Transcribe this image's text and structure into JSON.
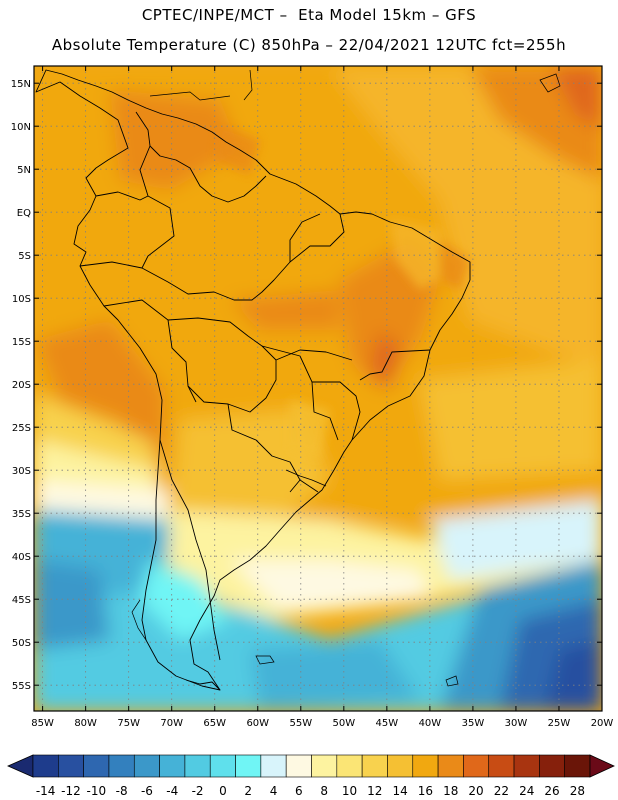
{
  "header": {
    "line1": "CPTEC/INPE/MCT –  Eta Model 15km – GFS",
    "line2": "Absolute Temperature (C) 850hPa – 22/04/2021 12UTC fct=255h"
  },
  "map": {
    "lon_range": [
      -86,
      -20
    ],
    "lat_range": [
      -58,
      17
    ],
    "lat_ticks": [
      "15N",
      "10N",
      "5N",
      "EQ",
      "5S",
      "10S",
      "15S",
      "20S",
      "25S",
      "30S",
      "35S",
      "40S",
      "45S",
      "50S",
      "55S"
    ],
    "lon_ticks": [
      "85W",
      "80W",
      "75W",
      "70W",
      "65W",
      "60W",
      "55W",
      "50W",
      "45W",
      "40W",
      "35W",
      "30W",
      "25W",
      "20W"
    ],
    "gridlines": "dotted"
  },
  "colorbar": {
    "labels": [
      "-14",
      "-12",
      "-10",
      "-8",
      "-6",
      "-4",
      "-2",
      "0",
      "2",
      "4",
      "6",
      "8",
      "10",
      "12",
      "14",
      "16",
      "18",
      "20",
      "22",
      "24",
      "26",
      "28"
    ],
    "colors": [
      "#1e3c8c",
      "#2850a0",
      "#2e67b0",
      "#3380be",
      "#3b98c9",
      "#45b2d7",
      "#52cbe2",
      "#5fe0ec",
      "#70f5f5",
      "#d8f4fb",
      "#fef9e2",
      "#fdf3a0",
      "#fbe575",
      "#f8d24e",
      "#f5c033",
      "#f1a810",
      "#ea8a18",
      "#e0681a",
      "#c84c14",
      "#a83410",
      "#86200c",
      "#6a1508"
    ]
  }
}
